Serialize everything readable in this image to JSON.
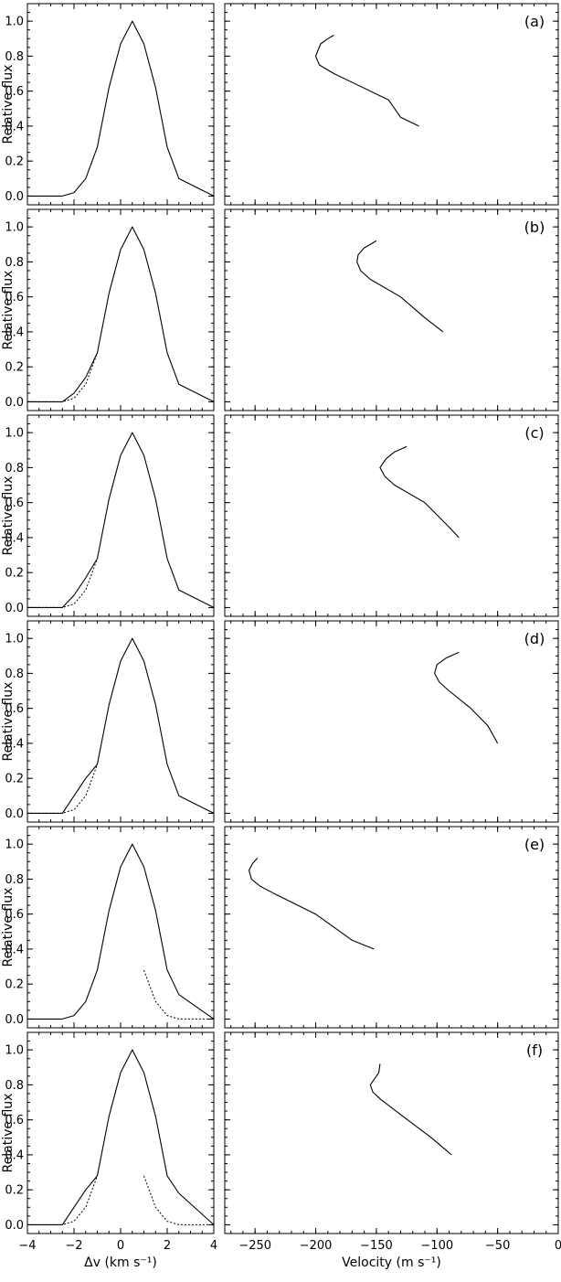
{
  "chart_data": {
    "type": "line",
    "panels": [
      {
        "label": "(a)",
        "profile": {
          "solid": {
            "x": [
              -4,
              -2.5,
              -2,
              -1.5,
              -1,
              -0.5,
              0,
              0.5,
              1,
              1.5,
              2,
              2.5,
              4
            ],
            "y": [
              0.0,
              0.0,
              0.02,
              0.1,
              0.28,
              0.62,
              0.87,
              1.0,
              0.87,
              0.62,
              0.28,
              0.1,
              0.0
            ]
          },
          "dotted": null
        },
        "velocity": {
          "x": [
            -185,
            -190,
            -196,
            -200,
            -197,
            -185,
            -140,
            -130,
            -115
          ],
          "y": [
            0.92,
            0.9,
            0.87,
            0.8,
            0.75,
            0.7,
            0.55,
            0.45,
            0.4
          ]
        }
      },
      {
        "label": "(b)",
        "profile": {
          "solid": {
            "x": [
              -4,
              -2.5,
              -2,
              -1.5,
              -1,
              -0.5,
              0,
              0.5,
              1,
              1.5,
              2,
              2.5,
              4
            ],
            "y": [
              0.0,
              0.0,
              0.05,
              0.14,
              0.28,
              0.62,
              0.87,
              1.0,
              0.87,
              0.62,
              0.28,
              0.1,
              0.0
            ]
          },
          "dotted": {
            "x": [
              -4,
              -2.5,
              -2,
              -1.5,
              -1
            ],
            "y": [
              0.0,
              0.0,
              0.02,
              0.1,
              0.28
            ]
          }
        },
        "velocity": {
          "x": [
            -150,
            -160,
            -165,
            -166,
            -163,
            -155,
            -130,
            -110,
            -95
          ],
          "y": [
            0.92,
            0.88,
            0.84,
            0.8,
            0.75,
            0.7,
            0.6,
            0.48,
            0.4
          ]
        }
      },
      {
        "label": "(c)",
        "profile": {
          "solid": {
            "x": [
              -4,
              -2.5,
              -2,
              -1.5,
              -1,
              -0.5,
              0,
              0.5,
              1,
              1.5,
              2,
              2.5,
              4
            ],
            "y": [
              0.0,
              0.0,
              0.07,
              0.17,
              0.28,
              0.62,
              0.87,
              1.0,
              0.87,
              0.62,
              0.28,
              0.1,
              0.0
            ]
          },
          "dotted": {
            "x": [
              -4,
              -2.5,
              -2,
              -1.5,
              -1
            ],
            "y": [
              0.0,
              0.0,
              0.02,
              0.1,
              0.28
            ]
          }
        },
        "velocity": {
          "x": [
            -125,
            -135,
            -142,
            -147,
            -143,
            -135,
            -110,
            -90,
            -82
          ],
          "y": [
            0.92,
            0.89,
            0.85,
            0.8,
            0.75,
            0.7,
            0.6,
            0.46,
            0.4
          ]
        }
      },
      {
        "label": "(d)",
        "profile": {
          "solid": {
            "x": [
              -4,
              -2.5,
              -2,
              -1.5,
              -1,
              -0.5,
              0,
              0.5,
              1,
              1.5,
              2,
              2.5,
              4
            ],
            "y": [
              0.0,
              0.0,
              0.1,
              0.2,
              0.28,
              0.62,
              0.87,
              1.0,
              0.87,
              0.62,
              0.28,
              0.1,
              0.0
            ]
          },
          "dotted": {
            "x": [
              -4,
              -2.5,
              -2,
              -1.5,
              -1
            ],
            "y": [
              0.0,
              0.0,
              0.02,
              0.1,
              0.28
            ]
          }
        },
        "velocity": {
          "x": [
            -82,
            -92,
            -100,
            -102,
            -98,
            -90,
            -72,
            -58,
            -50
          ],
          "y": [
            0.92,
            0.89,
            0.85,
            0.8,
            0.75,
            0.7,
            0.6,
            0.5,
            0.4
          ]
        }
      },
      {
        "label": "(e)",
        "profile": {
          "solid": {
            "x": [
              -4,
              -2.5,
              -2,
              -1.5,
              -1,
              -0.5,
              0,
              0.5,
              1,
              1.5,
              2,
              2.5,
              4
            ],
            "y": [
              0.0,
              0.0,
              0.02,
              0.1,
              0.28,
              0.62,
              0.87,
              1.0,
              0.87,
              0.62,
              0.28,
              0.14,
              0.0
            ]
          },
          "dotted": {
            "x": [
              1,
              1.5,
              2,
              2.5,
              4
            ],
            "y": [
              0.28,
              0.1,
              0.02,
              0.0,
              0.0
            ]
          }
        },
        "velocity": {
          "x": [
            -248,
            -252,
            -255,
            -253,
            -246,
            -235,
            -200,
            -170,
            -152
          ],
          "y": [
            0.92,
            0.89,
            0.85,
            0.8,
            0.76,
            0.72,
            0.6,
            0.45,
            0.4
          ]
        }
      },
      {
        "label": "(f)",
        "profile": {
          "solid": {
            "x": [
              -4,
              -2.5,
              -2,
              -1.5,
              -1,
              -0.5,
              0,
              0.5,
              1,
              1.5,
              2,
              2.5,
              4
            ],
            "y": [
              0.0,
              0.0,
              0.1,
              0.2,
              0.28,
              0.62,
              0.87,
              1.0,
              0.87,
              0.62,
              0.28,
              0.18,
              0.0
            ]
          },
          "dotted": {
            "x": [
              -4,
              -2.5,
              -2,
              -1.5,
              -1
            ],
            "y": [
              0.0,
              0.0,
              0.02,
              0.1,
              0.28
            ]
          },
          "dotted_right": {
            "x": [
              1,
              1.5,
              2,
              2.5,
              4
            ],
            "y": [
              0.28,
              0.1,
              0.02,
              0.0,
              0.0
            ]
          }
        },
        "velocity": {
          "x": [
            -147,
            -148,
            -152,
            -155,
            -153,
            -147,
            -130,
            -105,
            -88
          ],
          "y": [
            0.92,
            0.87,
            0.83,
            0.8,
            0.76,
            0.72,
            0.63,
            0.5,
            0.4
          ]
        }
      }
    ],
    "left_axis": {
      "xlim": [
        -4,
        4
      ],
      "ylim": [
        -0.05,
        1.1
      ],
      "xticks": [
        -4,
        -2,
        0,
        2,
        4
      ],
      "yticks": [
        0.0,
        0.2,
        0.4,
        0.6,
        0.8,
        1.0
      ],
      "ylabel": "Relative flux",
      "xlabel": "Δv (km s⁻¹)"
    },
    "right_axis": {
      "xlim": [
        -275,
        0
      ],
      "ylim": [
        -0.05,
        1.1
      ],
      "xticks": [
        -250,
        -200,
        -150,
        -100,
        -50,
        0
      ],
      "xlabel": "Velocity (m s⁻¹)"
    },
    "tick_label_strings": {
      "left_x": [
        "−4",
        "−2",
        "0",
        "2",
        "4"
      ],
      "right_x": [
        "−250",
        "−200",
        "−150",
        "−100",
        "−50",
        "0"
      ],
      "y": [
        "0.0",
        "0.2",
        "0.4",
        "0.6",
        "0.8",
        "1.0"
      ]
    }
  }
}
